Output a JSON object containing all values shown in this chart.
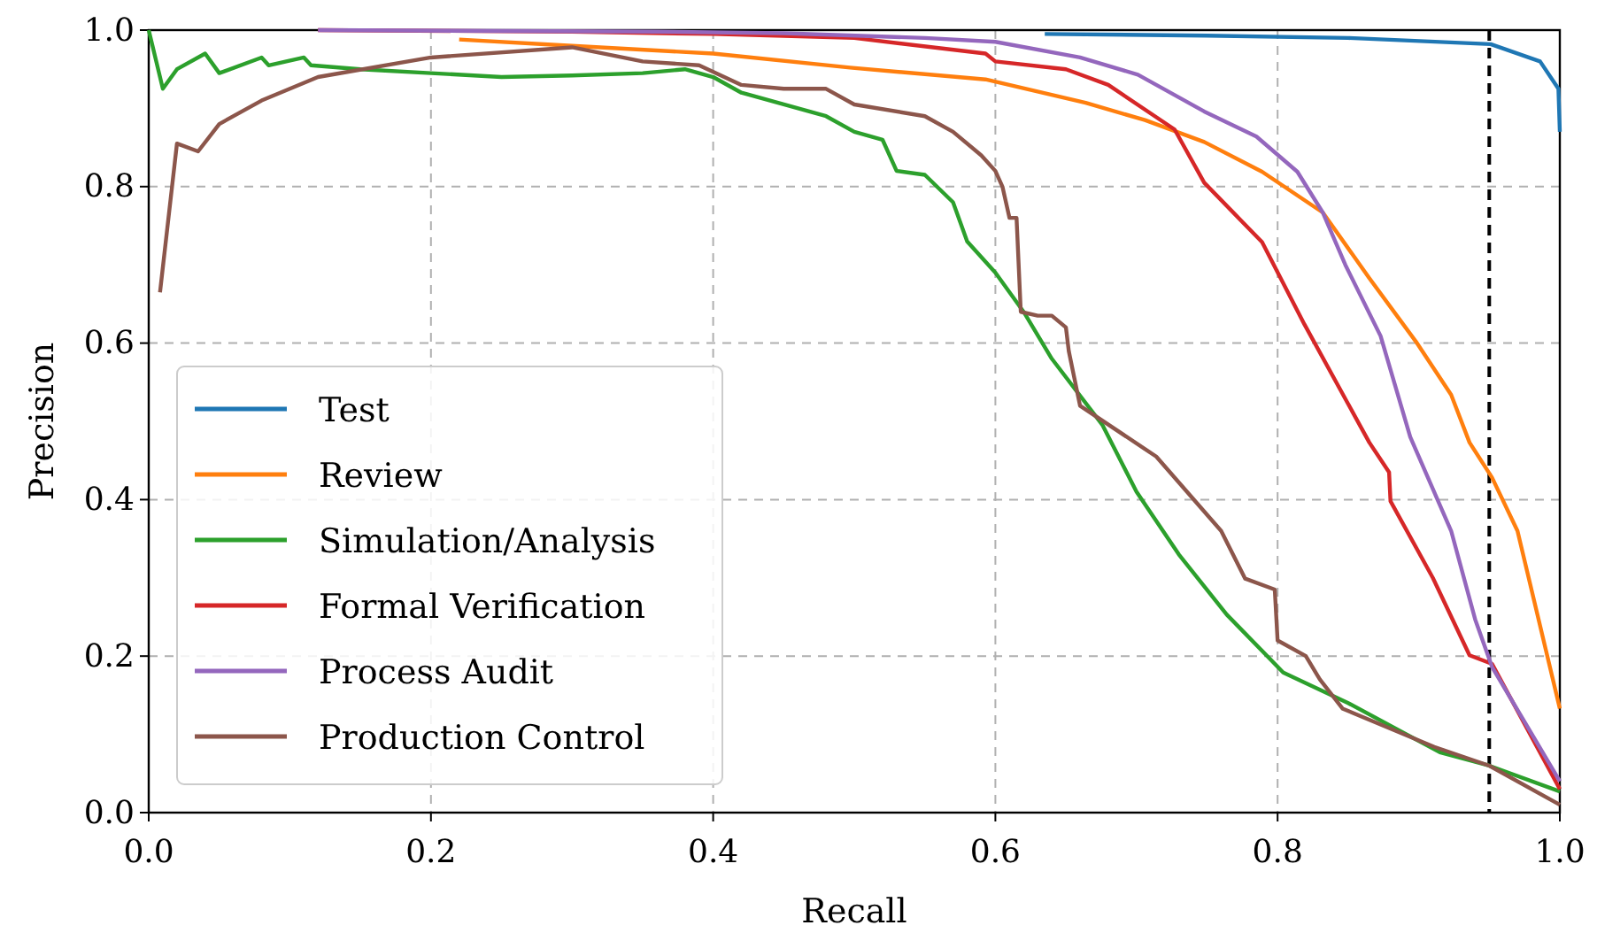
{
  "chart_data": {
    "type": "line",
    "xlabel": "Recall",
    "ylabel": "Precision",
    "xlim": [
      0,
      1
    ],
    "ylim": [
      0,
      1
    ],
    "xticks": [
      {
        "value": 0,
        "label": "0.0"
      },
      0.2,
      0.4,
      0.6,
      0.8,
      {
        "value": 1,
        "label": "1.0"
      }
    ],
    "yticks": [
      {
        "value": 0,
        "label": "0.0"
      },
      0.2,
      0.4,
      0.6,
      0.8,
      {
        "value": 1,
        "label": "1.0"
      }
    ],
    "grid": true,
    "legend": "bottom left",
    "line_style": "solid",
    "marker": "none",
    "ref_lines": [
      {
        "axis": "x",
        "value": 0.95,
        "color": "#000000",
        "line_style": "dashed"
      }
    ],
    "series": [
      {
        "name": "Test",
        "color": "#1f77b4",
        "x": [
          0.635,
          0.75,
          0.85,
          0.951,
          0.986,
          0.999,
          1.0
        ],
        "values": [
          0.995,
          0.993,
          0.99,
          0.982,
          0.96,
          0.925,
          0.87
        ]
      },
      {
        "name": "Review",
        "color": "#ff7f0e",
        "x": [
          0.22,
          0.3,
          0.4,
          0.497,
          0.593,
          0.664,
          0.706,
          0.748,
          0.789,
          0.832,
          0.865,
          0.898,
          0.923,
          0.936,
          0.952,
          0.97,
          1.0
        ],
        "values": [
          0.988,
          0.98,
          0.97,
          0.952,
          0.937,
          0.907,
          0.885,
          0.857,
          0.819,
          0.767,
          0.683,
          0.602,
          0.534,
          0.473,
          0.428,
          0.36,
          0.133
        ]
      },
      {
        "name": "Simulation/Analysis",
        "color": "#2ca02c",
        "x": [
          0,
          0.01,
          0.02,
          0.04,
          0.05,
          0.08,
          0.085,
          0.11,
          0.115,
          0.15,
          0.2,
          0.25,
          0.3,
          0.35,
          0.38,
          0.4,
          0.42,
          0.45,
          0.48,
          0.5,
          0.52,
          0.53,
          0.55,
          0.57,
          0.58,
          0.6,
          0.62,
          0.64,
          0.676,
          0.7,
          0.73,
          0.764,
          0.804,
          0.85,
          0.915,
          0.95,
          1.0
        ],
        "values": [
          1.0,
          0.925,
          0.95,
          0.97,
          0.945,
          0.965,
          0.955,
          0.965,
          0.955,
          0.95,
          0.945,
          0.94,
          0.942,
          0.945,
          0.95,
          0.94,
          0.92,
          0.905,
          0.89,
          0.87,
          0.86,
          0.82,
          0.815,
          0.78,
          0.73,
          0.69,
          0.64,
          0.58,
          0.495,
          0.41,
          0.33,
          0.253,
          0.179,
          0.14,
          0.077,
          0.06,
          0.027
        ]
      },
      {
        "name": "Formal Verification",
        "color": "#d62728",
        "x": [
          0.12,
          0.3,
          0.4,
          0.5,
          0.593,
          0.6,
          0.65,
          0.68,
          0.727,
          0.748,
          0.789,
          0.819,
          0.865,
          0.879,
          0.88,
          0.91,
          0.936,
          0.952,
          1.0
        ],
        "values": [
          1.0,
          0.998,
          0.995,
          0.99,
          0.97,
          0.96,
          0.95,
          0.93,
          0.873,
          0.805,
          0.729,
          0.624,
          0.473,
          0.435,
          0.398,
          0.3,
          0.201,
          0.19,
          0.03
        ]
      },
      {
        "name": "Process Audit",
        "color": "#9467bd",
        "x": [
          0.12,
          0.36,
          0.45,
          0.55,
          0.6,
          0.66,
          0.701,
          0.748,
          0.785,
          0.814,
          0.832,
          0.848,
          0.873,
          0.894,
          0.923,
          0.94,
          0.952,
          1.0
        ],
        "values": [
          1.0,
          0.998,
          0.996,
          0.99,
          0.985,
          0.965,
          0.943,
          0.896,
          0.864,
          0.819,
          0.767,
          0.7,
          0.609,
          0.48,
          0.36,
          0.247,
          0.186,
          0.04
        ]
      },
      {
        "name": "Production Control",
        "color": "#8c564b",
        "x": [
          0.008,
          0.02,
          0.035,
          0.05,
          0.08,
          0.12,
          0.2,
          0.3,
          0.35,
          0.39,
          0.42,
          0.45,
          0.48,
          0.5,
          0.55,
          0.57,
          0.59,
          0.6,
          0.605,
          0.61,
          0.615,
          0.618,
          0.63,
          0.64,
          0.65,
          0.652,
          0.66,
          0.714,
          0.76,
          0.777,
          0.798,
          0.8,
          0.82,
          0.83,
          0.846,
          0.911,
          0.95,
          1.0
        ],
        "values": [
          0.665,
          0.855,
          0.845,
          0.88,
          0.91,
          0.94,
          0.965,
          0.978,
          0.96,
          0.955,
          0.93,
          0.925,
          0.925,
          0.905,
          0.89,
          0.87,
          0.84,
          0.82,
          0.8,
          0.76,
          0.76,
          0.64,
          0.635,
          0.635,
          0.62,
          0.59,
          0.52,
          0.455,
          0.36,
          0.299,
          0.285,
          0.22,
          0.2,
          0.17,
          0.133,
          0.084,
          0.06,
          0.01
        ]
      }
    ]
  }
}
